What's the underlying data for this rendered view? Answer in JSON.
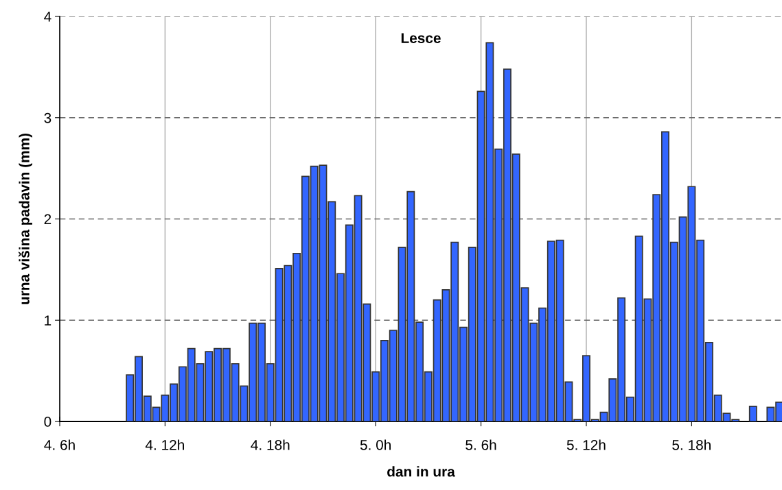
{
  "chart_data": {
    "type": "bar",
    "title": "Lesce",
    "xlabel": "dan in ura",
    "ylabel": "urna višina padavin (mm)",
    "categories": [
      "4. 6h",
      null,
      null,
      null,
      null,
      null,
      null,
      null,
      null,
      null,
      null,
      null,
      "4. 12h",
      null,
      null,
      null,
      null,
      null,
      null,
      null,
      null,
      null,
      null,
      null,
      "4. 18h",
      null,
      null,
      null,
      null,
      null,
      null,
      null,
      null,
      null,
      null,
      null,
      "5. 0h",
      null,
      null,
      null,
      null,
      null,
      null,
      null,
      null,
      null,
      null,
      null,
      "5. 6h",
      null,
      null,
      null,
      null,
      null,
      null,
      null,
      null,
      null,
      null,
      null,
      "5. 12h",
      null,
      null,
      null,
      null,
      null,
      null,
      null,
      null,
      null,
      null,
      null,
      "5. 18h",
      null,
      null,
      null,
      null,
      null,
      null,
      null,
      null,
      null,
      null
    ],
    "values": [
      null,
      null,
      null,
      null,
      null,
      null,
      null,
      null,
      0.46,
      0.64,
      0.25,
      0.14,
      0.26,
      0.37,
      0.54,
      0.72,
      0.57,
      0.69,
      0.72,
      0.72,
      0.57,
      0.35,
      0.97,
      0.97,
      0.57,
      1.51,
      1.54,
      1.66,
      2.42,
      2.52,
      2.53,
      2.17,
      1.46,
      1.94,
      2.23,
      1.16,
      0.49,
      0.8,
      0.9,
      1.72,
      2.27,
      0.98,
      0.49,
      1.2,
      1.3,
      1.77,
      0.93,
      1.72,
      3.26,
      3.74,
      2.69,
      3.48,
      2.64,
      1.32,
      0.97,
      1.12,
      1.78,
      1.79,
      0.39,
      0.02,
      0.65,
      0.02,
      0.09,
      0.42,
      1.22,
      0.24,
      1.83,
      1.21,
      2.24,
      2.86,
      1.77,
      2.02,
      2.32,
      1.79,
      0.78,
      0.26,
      0.08,
      0.02,
      null,
      0.15,
      null,
      0.14,
      0.19
    ],
    "color": "#3366ff",
    "ylim": [
      0,
      4
    ],
    "yticks": [
      0,
      1,
      2,
      3,
      4
    ],
    "grid": true
  }
}
